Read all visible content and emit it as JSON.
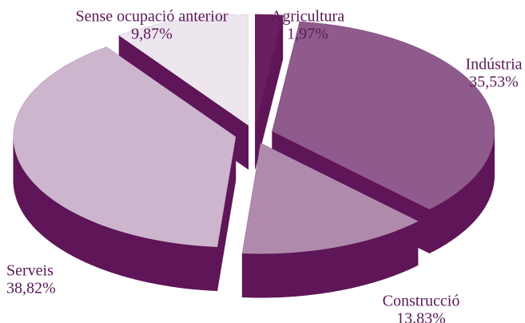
{
  "chart_data": {
    "type": "pie3d",
    "categories": [
      "Agricultura",
      "Indústria",
      "Construcció",
      "Serveis",
      "Sense ocupació anterior"
    ],
    "values": [
      1.97,
      35.53,
      13.83,
      38.82,
      9.87
    ],
    "value_labels": [
      "1,97%",
      "35,53%",
      "13.83%",
      "38,82%",
      "9,87%"
    ],
    "colors": [
      "#6a1f63",
      "#8f5a8c",
      "#b08aac",
      "#cdb6cd",
      "#eee6ef"
    ],
    "side_color": "#5e1658"
  }
}
